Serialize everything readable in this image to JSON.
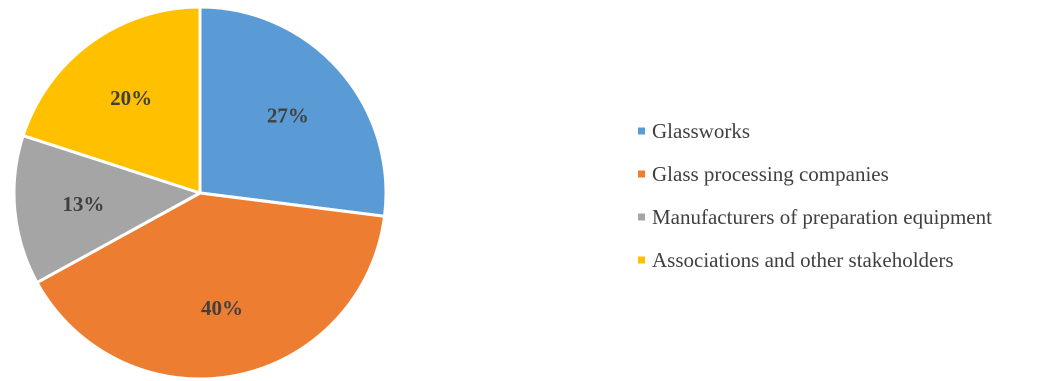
{
  "chart_data": {
    "type": "pie",
    "categories": [
      "Glassworks",
      "Glass processing companies",
      "Manufacturers of preparation equipment",
      "Associations and other stakeholders"
    ],
    "values": [
      27,
      40,
      13,
      20
    ],
    "labels": [
      "27%",
      "40%",
      "13%",
      "20%"
    ],
    "colors": [
      "#5B9BD5",
      "#ED7D31",
      "#A5A5A5",
      "#FFC000"
    ],
    "start_angle_deg": 0,
    "direction": "clockwise",
    "legend_placement": "right",
    "title": ""
  }
}
